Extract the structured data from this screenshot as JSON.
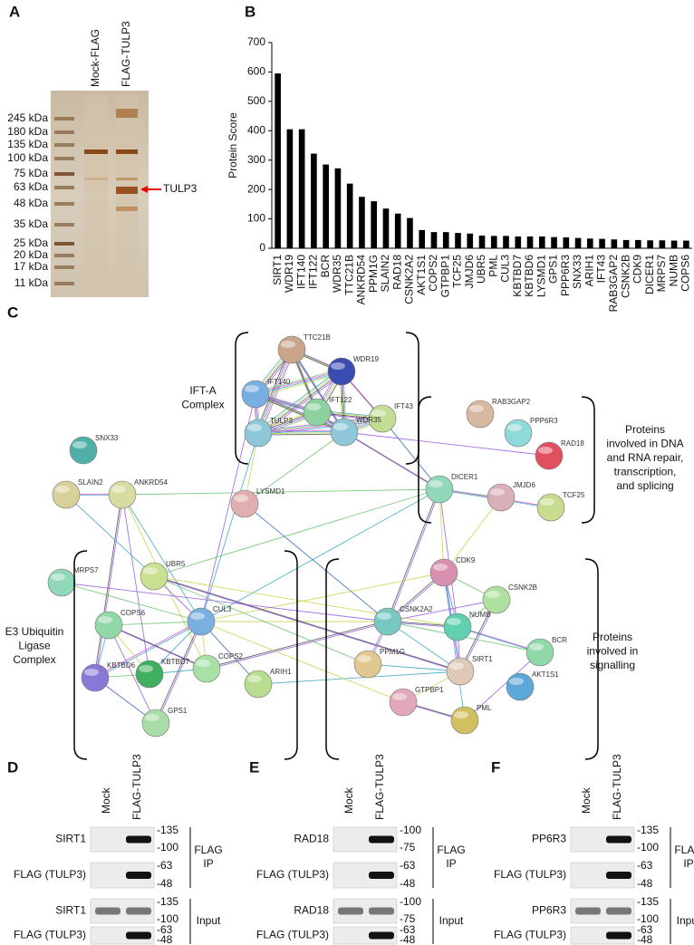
{
  "panel_labels": [
    "A",
    "B",
    "C",
    "D",
    "E",
    "F"
  ],
  "gel": {
    "lanes": [
      "Mock-FLAG",
      "FLAG-TULP3"
    ],
    "markers": [
      "245 kDa",
      "180 kDa",
      "135 kDa",
      "100 kDa",
      "75 kDa",
      "63 kDa",
      "48 kDa",
      "35 kDa",
      "25 kDa",
      "20 kDa",
      "17 kDa",
      "11 kDa"
    ],
    "arrow_label": "TULP3"
  },
  "chart_data": {
    "type": "bar",
    "ylabel": "Protein Score",
    "categories": [
      "SIRT1",
      "WDR19",
      "IFT140",
      "IFT122",
      "BCR",
      "WDR35",
      "TTC21B",
      "ANKRD54",
      "PPM1G",
      "SLAIN2",
      "RAD18",
      "CSNK2A2",
      "AKT1S1",
      "COPS2",
      "GTPBP1",
      "TCF25",
      "JMJD6",
      "UBR5",
      "PML",
      "CUL3",
      "KBTBD7",
      "KBTBD6",
      "LYSMD1",
      "GPS1",
      "PPP6R3",
      "SNX33",
      "ARIH1",
      "IFT43",
      "RAB3GAP2",
      "CSNK2B",
      "CDK9",
      "DICER1",
      "MRPS7",
      "NUMB",
      "COPS6"
    ],
    "values": [
      595,
      405,
      405,
      322,
      285,
      272,
      220,
      175,
      160,
      135,
      118,
      103,
      62,
      55,
      55,
      52,
      50,
      43,
      42,
      42,
      40,
      40,
      40,
      38,
      37,
      35,
      33,
      32,
      30,
      28,
      28,
      27,
      27,
      26,
      26
    ],
    "color": "#000000",
    "ylim": [
      0,
      700
    ],
    "yticks": [
      0,
      100,
      200,
      300,
      400,
      500,
      600,
      700
    ]
  },
  "network": {
    "groups": [
      {
        "lines": [
          "IFT-A",
          "Complex"
        ]
      },
      {
        "lines": [
          "Proteins",
          "involved in DNA",
          "and RNA repair,",
          "transcription,",
          "and splicing"
        ]
      },
      {
        "lines": [
          "E3 Ubiquitin",
          "Ligase",
          "Complex"
        ]
      },
      {
        "lines": [
          "Proteins",
          "involved in",
          "signalling"
        ]
      }
    ],
    "nodes": [
      "TTC21B",
      "WDR19",
      "IFT140",
      "IFT122",
      "IFT43",
      "TULP3",
      "WDR35",
      "RAB3GAP2",
      "PPP6R3",
      "RAD18",
      "SNX33",
      "SLAIN2",
      "ANKRD54",
      "LYSMD1",
      "DICER1",
      "JMJD6",
      "TCF25",
      "MRPS7",
      "UBR5",
      "CDK9",
      "CSNK2B",
      "COPS6",
      "CUL3",
      "CSNK2A2",
      "NUMB",
      "BCR",
      "KBTBD6",
      "KBTBD7",
      "COPS2",
      "ARIH1",
      "PPM1G",
      "SIRT1",
      "AKT1S1",
      "GTPBP1",
      "PML",
      "GPS1"
    ]
  },
  "blots": [
    {
      "lanes": [
        "Mock",
        "FLAG-TULP3"
      ],
      "blocks": [
        {
          "rows": [
            {
              "label": "SIRT1",
              "markers": [
                "-135",
                "-100"
              ]
            },
            {
              "label": "FLAG (TULP3)",
              "markers": [
                "-63",
                "-48"
              ]
            }
          ],
          "group": [
            "FLAG",
            "IP"
          ]
        },
        {
          "rows": [
            {
              "label": "SIRT1",
              "markers": [
                "-135",
                "-100"
              ]
            },
            {
              "label": "FLAG (TULP3)",
              "markers": [
                "-63",
                "-48"
              ]
            }
          ],
          "group": [
            "Input"
          ]
        }
      ]
    },
    {
      "lanes": [
        "Mock",
        "FLAG-TULP3"
      ],
      "blocks": [
        {
          "rows": [
            {
              "label": "RAD18",
              "markers": [
                "-100",
                "-75"
              ]
            },
            {
              "label": "FLAG (TULP3)",
              "markers": [
                "-63",
                "-48"
              ]
            }
          ],
          "group": [
            "FLAG",
            "IP"
          ]
        },
        {
          "rows": [
            {
              "label": "RAD18",
              "markers": [
                "-100",
                "-75"
              ]
            },
            {
              "label": "FLAG (TULP3)",
              "markers": [
                "-63",
                "-48"
              ]
            }
          ],
          "group": [
            "Input"
          ]
        }
      ]
    },
    {
      "lanes": [
        "Mock",
        "FLAG-TULP3"
      ],
      "blocks": [
        {
          "rows": [
            {
              "label": "PP6R3",
              "markers": [
                "-135",
                "-100"
              ]
            },
            {
              "label": "FLAG (TULP3)",
              "markers": [
                "-63",
                "-48"
              ]
            }
          ],
          "group": [
            "FLAG",
            "IP"
          ]
        },
        {
          "rows": [
            {
              "label": "PP6R3",
              "markers": [
                "-135",
                "-100"
              ]
            },
            {
              "label": "FLAG (TULP3)",
              "markers": [
                "-63",
                "-48"
              ]
            }
          ],
          "group": [
            "Input"
          ]
        }
      ]
    }
  ]
}
